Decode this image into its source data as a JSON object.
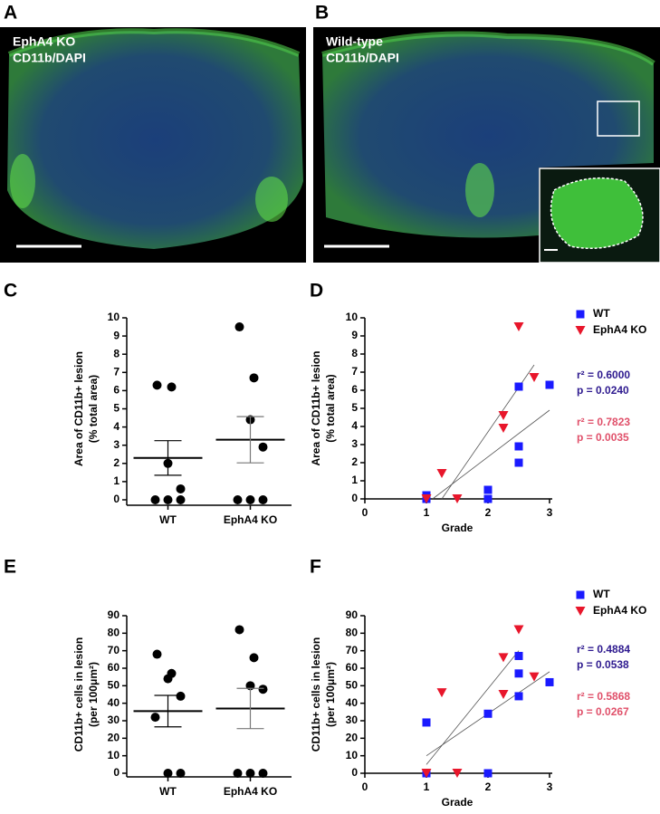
{
  "panel_labels": [
    "A",
    "B",
    "C",
    "D",
    "E",
    "F"
  ],
  "images": [
    {
      "lines": [
        "EphA4 KO",
        "CD11b/DAPI"
      ]
    },
    {
      "lines": [
        "Wild-type",
        "CD11b/DAPI"
      ]
    }
  ],
  "chart_data": [
    {
      "type": "dot",
      "ylabel": [
        "Area of CD11b+ lesion",
        "(% total area)"
      ],
      "categories": [
        "WT",
        "EphA4 KO"
      ],
      "points": [
        [
          6.3,
          6.2,
          2.0,
          0.6,
          0,
          0,
          0
        ],
        [
          9.5,
          6.7,
          4.4,
          2.9,
          0,
          0,
          0
        ]
      ],
      "mean": [
        2.3,
        3.3
      ],
      "sem": [
        0.95,
        1.27
      ],
      "color": "#000000",
      "ylim": [
        0,
        10
      ],
      "yticks": [
        0,
        1,
        2,
        3,
        4,
        5,
        6,
        7,
        8,
        9,
        10
      ]
    },
    {
      "type": "scatter",
      "xlabel": "Grade",
      "ylabel": [
        "Area of CD11b+ lesion",
        "(% total area)"
      ],
      "xlim": [
        0,
        3
      ],
      "xticks": [
        0,
        1,
        2,
        3
      ],
      "ylim": [
        0,
        10
      ],
      "yticks": [
        0,
        1,
        2,
        3,
        4,
        5,
        6,
        7,
        8,
        9,
        10
      ],
      "legend": "upper right",
      "series": [
        {
          "name": "WT",
          "color": "#1a1aff",
          "marker": "square",
          "x": [
            1,
            1,
            2,
            2,
            2.5,
            2.5,
            2.5,
            3
          ],
          "values": [
            0.2,
            0,
            0.5,
            0,
            6.2,
            2.9,
            2.0,
            6.3
          ],
          "stats": [
            "r² = 0.6000",
            "p = 0.0240"
          ],
          "stats_color": "#2e1a8f",
          "fit": {
            "x": [
              1.1,
              3
            ],
            "y": [
              0,
              4.9
            ]
          }
        },
        {
          "name": "EphA4 KO",
          "color": "#e8162b",
          "marker": "triangle",
          "x": [
            1,
            1.25,
            1.5,
            2.25,
            2.25,
            2.5,
            2.75
          ],
          "values": [
            0,
            1.4,
            0,
            4.6,
            3.9,
            9.5,
            6.7
          ],
          "stats": [
            "r² = 0.7823",
            "p = 0.0035"
          ],
          "stats_color": "#e0506a",
          "fit": {
            "x": [
              1.25,
              2.75
            ],
            "y": [
              0,
              7.4
            ]
          }
        }
      ]
    },
    {
      "type": "dot",
      "ylabel": [
        "CD11b+ cells in lesion",
        "(per 100μm²)"
      ],
      "categories": [
        "WT",
        "EphA4 KO"
      ],
      "points": [
        [
          68,
          57,
          54,
          44,
          32,
          0,
          0
        ],
        [
          82,
          66,
          50,
          48,
          0,
          0,
          0
        ]
      ],
      "mean": [
        35.5,
        37
      ],
      "sem": [
        9,
        11.5
      ],
      "color": "#000000",
      "ylim": [
        0,
        90
      ],
      "yticks": [
        0,
        10,
        20,
        30,
        40,
        50,
        60,
        70,
        80,
        90
      ]
    },
    {
      "type": "scatter",
      "xlabel": "Grade",
      "ylabel": [
        "CD11b+ cells in lesion",
        "(per 100μm²)"
      ],
      "xlim": [
        0,
        3
      ],
      "xticks": [
        0,
        1,
        2,
        3
      ],
      "ylim": [
        0,
        90
      ],
      "yticks": [
        0,
        10,
        20,
        30,
        40,
        50,
        60,
        70,
        80,
        90
      ],
      "legend": "upper right",
      "series": [
        {
          "name": "WT",
          "color": "#1a1aff",
          "marker": "square",
          "x": [
            1,
            1,
            2,
            2,
            2.5,
            2.5,
            2.5,
            3
          ],
          "values": [
            29,
            0,
            34,
            0,
            67,
            57,
            44,
            52
          ],
          "stats": [
            "r² = 0.4884",
            "p = 0.0538"
          ],
          "stats_color": "#2e1a8f",
          "fit": {
            "x": [
              1,
              3
            ],
            "y": [
              10,
              58
            ]
          }
        },
        {
          "name": "EphA4 KO",
          "color": "#e8162b",
          "marker": "triangle",
          "x": [
            1,
            1.25,
            1.5,
            2.25,
            2.25,
            2.5,
            2.75
          ],
          "values": [
            0,
            46,
            0,
            66,
            45,
            82,
            55
          ],
          "stats": [
            "r² = 0.5868",
            "p = 0.0267"
          ],
          "stats_color": "#e0506a",
          "fit": {
            "x": [
              1,
              2.5
            ],
            "y": [
              5,
              70
            ]
          }
        }
      ]
    }
  ]
}
